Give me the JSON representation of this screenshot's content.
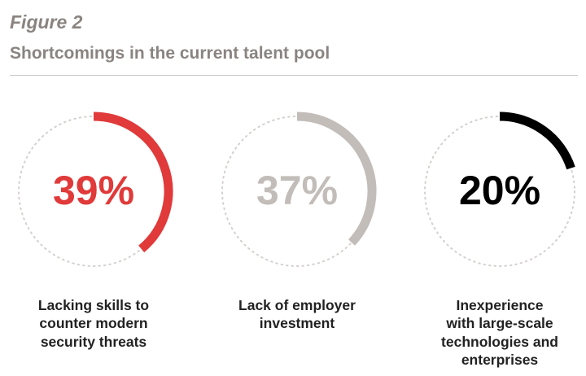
{
  "figure_label": "Figure 2",
  "figure_title": "Shortcomings in the current talent pool",
  "chart_data": {
    "type": "gauge",
    "title": "Shortcomings in the current talent pool",
    "items": [
      {
        "value": 39,
        "display": "39%",
        "label_lines": [
          "Lacking skills to",
          "counter modern",
          "security threats"
        ],
        "color": "#e03a3a"
      },
      {
        "value": 37,
        "display": "37%",
        "label_lines": [
          "Lack of employer",
          "investment"
        ],
        "color": "#c2bdb9"
      },
      {
        "value": 20,
        "display": "20%",
        "label_lines": [
          "Inexperience",
          "with large-scale",
          "technologies and",
          "enterprises"
        ],
        "color": "#000000"
      }
    ],
    "track_color": "#d4d0cd"
  }
}
